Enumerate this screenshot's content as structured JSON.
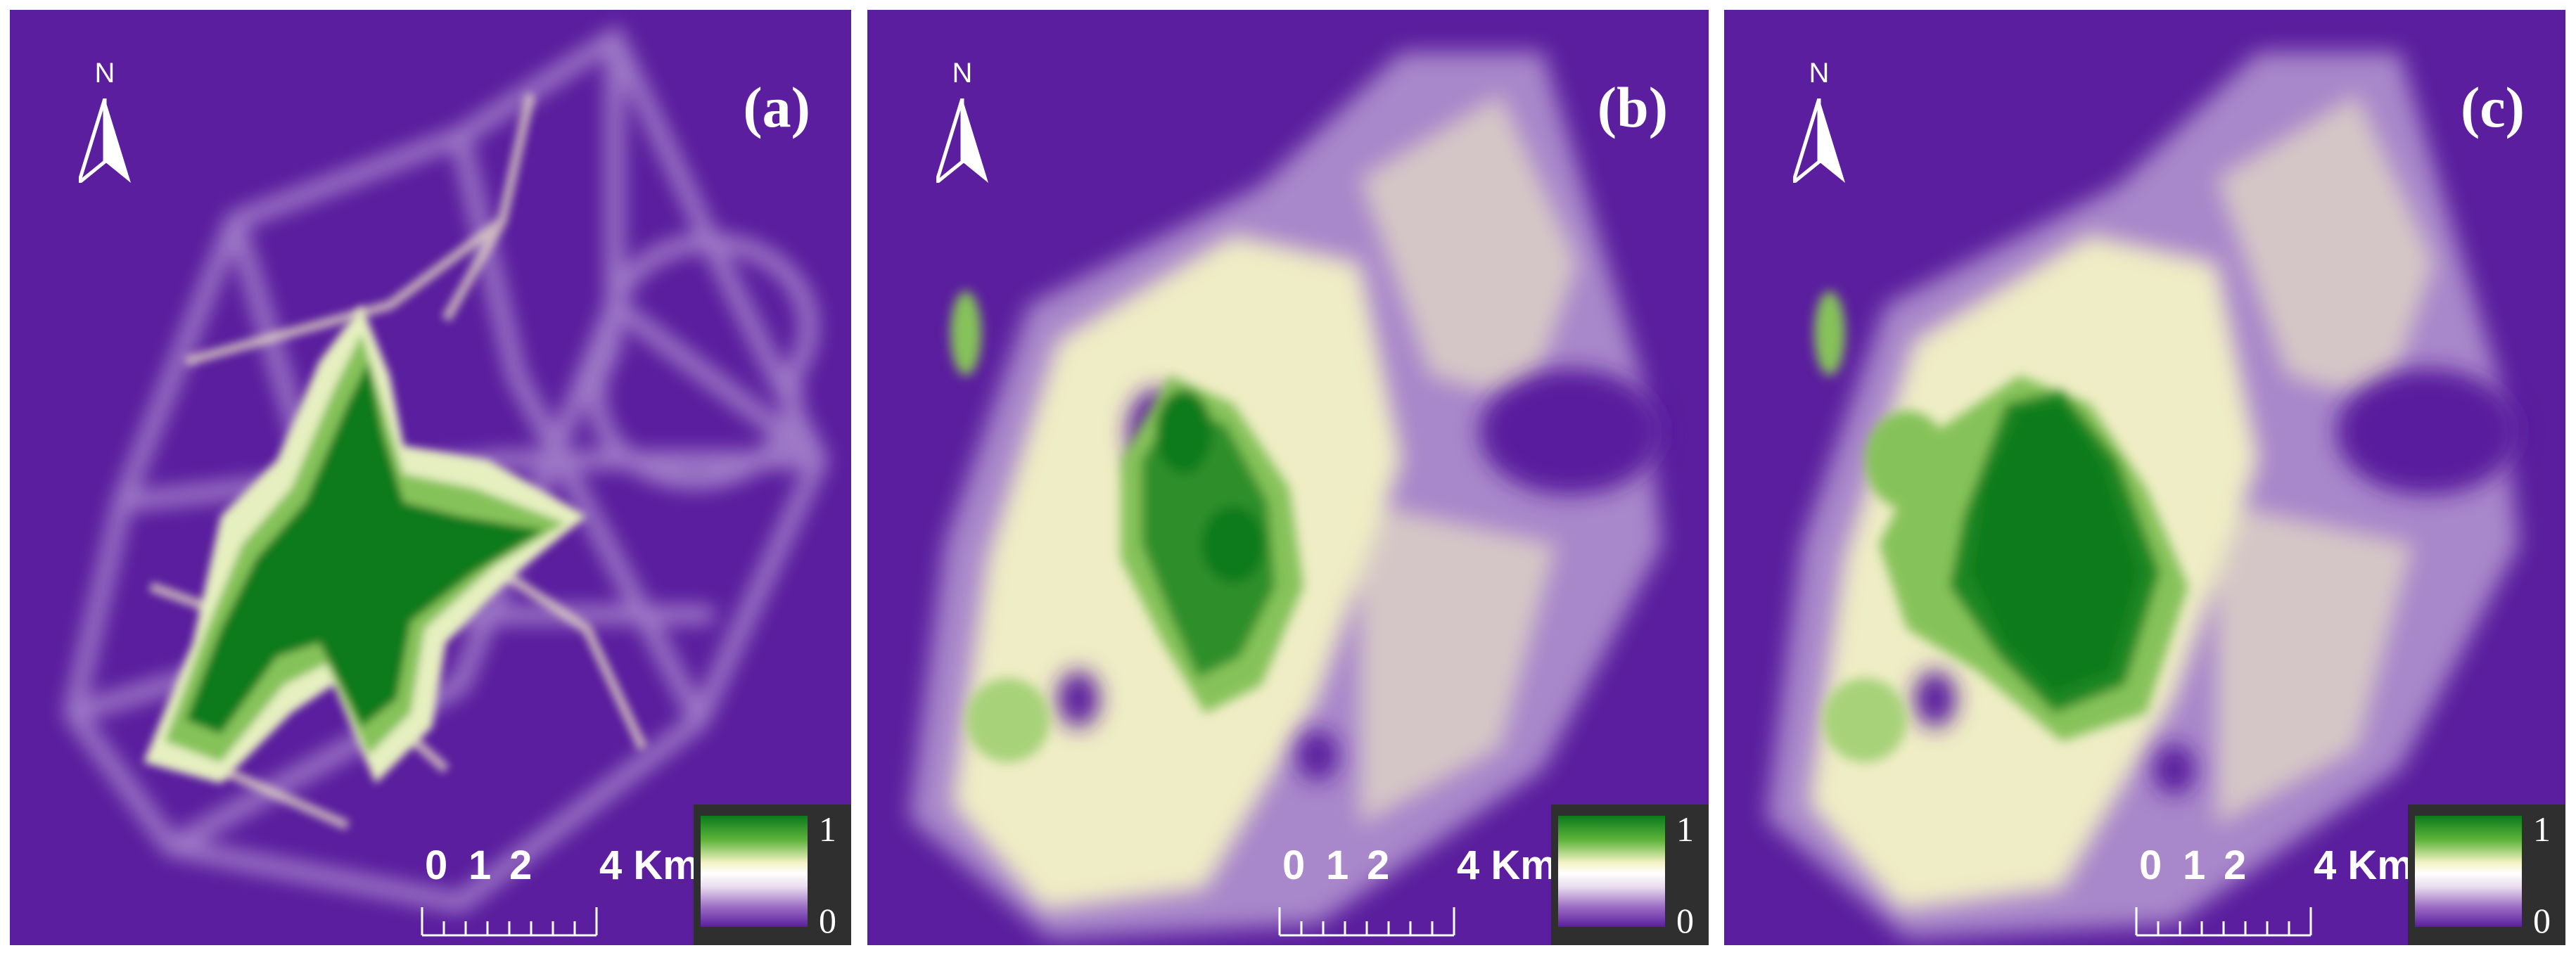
{
  "panels": [
    {
      "id": "a",
      "label": "(a)"
    },
    {
      "id": "b",
      "label": "(b)"
    },
    {
      "id": "c",
      "label": "(c)"
    }
  ],
  "north_arrow": {
    "letter": "N"
  },
  "scale_bar": {
    "tick_labels": [
      "0",
      "1",
      "2",
      "4 Km"
    ]
  },
  "legend": {
    "max_label": "1",
    "min_label": "0"
  },
  "colors": {
    "background": "#5a1e9e",
    "low": "#5a1e9e",
    "mid": "#f2f2c4",
    "high": "#0b7a1c",
    "legend_bg": "#2f2f2f"
  }
}
